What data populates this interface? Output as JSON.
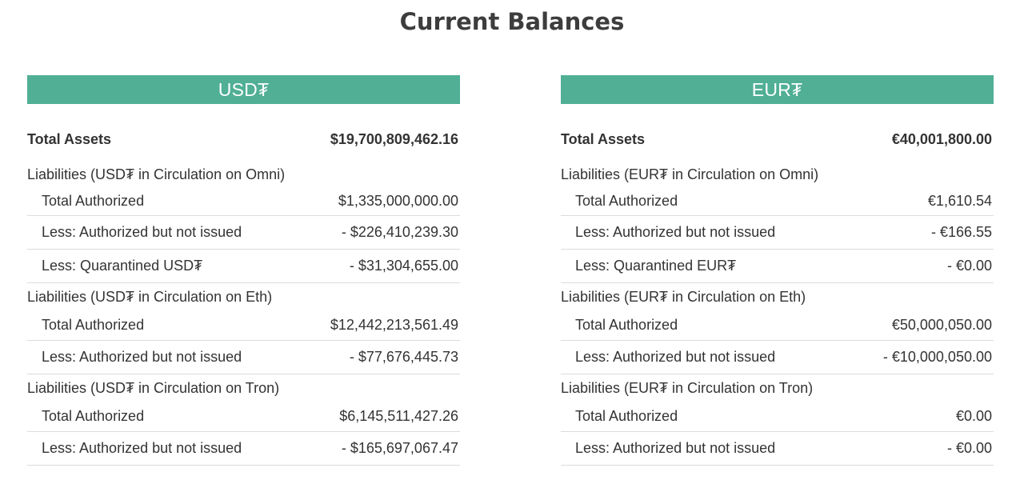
{
  "page": {
    "title": "Current Balances"
  },
  "usd": {
    "header": "USD₮",
    "total_assets_label": "Total Assets",
    "total_assets_value": "$19,700,809,462.16",
    "omni": {
      "section_label": "Liabilities (USD₮ in Circulation on Omni)",
      "rows": [
        {
          "label": "Total Authorized",
          "value": "$1,335,000,000.00"
        },
        {
          "label": "Less: Authorized but not issued",
          "value": "- $226,410,239.30"
        },
        {
          "label": "Less: Quarantined USD₮",
          "value": "- $31,304,655.00"
        }
      ]
    },
    "eth": {
      "section_label": "Liabilities (USD₮ in Circulation on Eth)",
      "rows": [
        {
          "label": "Total Authorized",
          "value": "$12,442,213,561.49"
        },
        {
          "label": "Less: Authorized but not issued",
          "value": "- $77,676,445.73"
        }
      ]
    },
    "tron": {
      "section_label": "Liabilities (USD₮ in Circulation on Tron)",
      "rows": [
        {
          "label": "Total Authorized",
          "value": "$6,145,511,427.26"
        },
        {
          "label": "Less: Authorized but not issued",
          "value": "- $165,697,067.47"
        }
      ]
    }
  },
  "eur": {
    "header": "EUR₮",
    "total_assets_label": "Total Assets",
    "total_assets_value": "€40,001,800.00",
    "omni": {
      "section_label": "Liabilities (EUR₮ in Circulation on Omni)",
      "rows": [
        {
          "label": "Total Authorized",
          "value": "€1,610.54"
        },
        {
          "label": "Less: Authorized but not issued",
          "value": "- €166.55"
        },
        {
          "label": "Less: Quarantined EUR₮",
          "value": "- €0.00"
        }
      ]
    },
    "eth": {
      "section_label": "Liabilities (EUR₮ in Circulation on Eth)",
      "rows": [
        {
          "label": "Total Authorized",
          "value": "€50,000,050.00"
        },
        {
          "label": "Less: Authorized but not issued",
          "value": "- €10,000,050.00"
        }
      ]
    },
    "tron": {
      "section_label": "Liabilities (EUR₮ in Circulation on Tron)",
      "rows": [
        {
          "label": "Total Authorized",
          "value": "€0.00"
        },
        {
          "label": "Less: Authorized but not issued",
          "value": "- €0.00"
        }
      ]
    }
  }
}
